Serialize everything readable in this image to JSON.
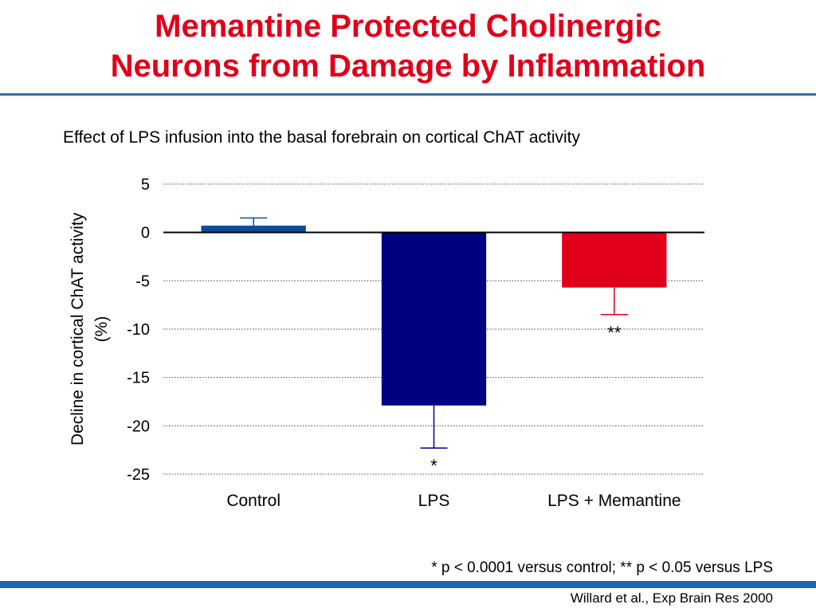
{
  "slide": {
    "title_lines": [
      "Memantine Protected Cholinergic",
      "Neurons from Damage by Inflammation"
    ],
    "footnote": "* p < 0.0001 versus control; ** p < 0.05 versus LPS",
    "citation": "Willard et al., Exp Brain Res 2000",
    "colors": {
      "title": "#e1001a",
      "rule": "#1767b5"
    }
  },
  "chart_data": {
    "type": "bar",
    "title": "Effect of LPS infusion into the basal forebrain on cortical ChAT activity",
    "xlabel": "",
    "ylabel": [
      "Decline in cortical ChAT activity",
      "(%)"
    ],
    "categories": [
      "Control",
      "LPS",
      "LPS + Memantine"
    ],
    "values": [
      0.7,
      -17.9,
      -5.7
    ],
    "error_bars": [
      0.8,
      4.4,
      2.8
    ],
    "annotations": [
      "",
      "*",
      "**"
    ],
    "colors": [
      "#0b4c9b",
      "#000080",
      "#e1001a"
    ],
    "ylim": [
      -25,
      5
    ],
    "yticks": [
      5,
      0,
      -5,
      -10,
      -15,
      -20,
      -25
    ],
    "grid": "dotted horizontal",
    "legend": "none"
  }
}
